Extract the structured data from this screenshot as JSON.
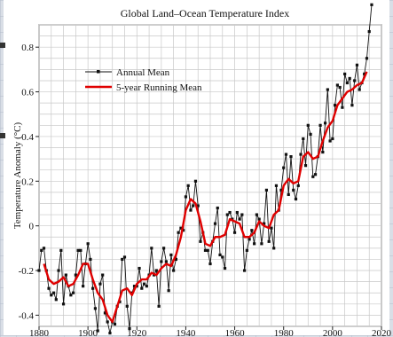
{
  "colors": {
    "annual": "#111111",
    "running": "#e00000",
    "grid": "#c8c8c8",
    "frame_bg": "#8fa3b8"
  },
  "chart_data": {
    "type": "line",
    "title": "Global Land–Ocean Temperature Index",
    "xlabel": "",
    "ylabel": "Temperature Anomaly (°C)",
    "xlim": [
      1880,
      2020
    ],
    "ylim": [
      -0.45,
      0.9
    ],
    "x_ticks": [
      1880,
      1900,
      1920,
      1940,
      1960,
      1980,
      2000,
      2020
    ],
    "y_ticks": [
      -0.4,
      -0.2,
      0,
      0.2,
      0.4,
      0.6,
      0.8
    ],
    "y_tick_labels": [
      "-0.4",
      "-0.2",
      "0",
      "0.2",
      "0.4",
      "0.6",
      "0.8"
    ],
    "grid": true,
    "legend_position": "upper-left",
    "series": [
      {
        "name": "Annual Mean",
        "color": "#111111",
        "marker": "square",
        "x": [
          1880,
          1881,
          1882,
          1883,
          1884,
          1885,
          1886,
          1887,
          1888,
          1889,
          1890,
          1891,
          1892,
          1893,
          1894,
          1895,
          1896,
          1897,
          1898,
          1899,
          1900,
          1901,
          1902,
          1903,
          1904,
          1905,
          1906,
          1907,
          1908,
          1909,
          1910,
          1911,
          1912,
          1913,
          1914,
          1915,
          1916,
          1917,
          1918,
          1919,
          1920,
          1921,
          1922,
          1923,
          1924,
          1925,
          1926,
          1927,
          1928,
          1929,
          1930,
          1931,
          1932,
          1933,
          1934,
          1935,
          1936,
          1937,
          1938,
          1939,
          1940,
          1941,
          1942,
          1943,
          1944,
          1945,
          1946,
          1947,
          1948,
          1949,
          1950,
          1951,
          1952,
          1953,
          1954,
          1955,
          1956,
          1957,
          1958,
          1959,
          1960,
          1961,
          1962,
          1963,
          1964,
          1965,
          1966,
          1967,
          1968,
          1969,
          1970,
          1971,
          1972,
          1973,
          1974,
          1975,
          1976,
          1977,
          1978,
          1979,
          1980,
          1981,
          1982,
          1983,
          1984,
          1985,
          1986,
          1987,
          1988,
          1989,
          1990,
          1991,
          1992,
          1993,
          1994,
          1995,
          1996,
          1997,
          1998,
          1999,
          2000,
          2001,
          2002,
          2003,
          2004,
          2005,
          2006,
          2007,
          2008,
          2009,
          2010,
          2011,
          2012,
          2013,
          2014,
          2015,
          2016
        ],
        "y": [
          -0.2,
          -0.11,
          -0.1,
          -0.2,
          -0.28,
          -0.31,
          -0.3,
          -0.33,
          -0.2,
          -0.11,
          -0.35,
          -0.22,
          -0.27,
          -0.31,
          -0.3,
          -0.22,
          -0.11,
          -0.11,
          -0.27,
          -0.17,
          -0.08,
          -0.15,
          -0.28,
          -0.37,
          -0.47,
          -0.26,
          -0.22,
          -0.39,
          -0.43,
          -0.48,
          -0.43,
          -0.44,
          -0.36,
          -0.34,
          -0.15,
          -0.14,
          -0.36,
          -0.46,
          -0.3,
          -0.27,
          -0.27,
          -0.19,
          -0.28,
          -0.26,
          -0.27,
          -0.22,
          -0.1,
          -0.22,
          -0.2,
          -0.36,
          -0.16,
          -0.1,
          -0.16,
          -0.29,
          -0.13,
          -0.2,
          -0.15,
          -0.03,
          -0.01,
          -0.02,
          0.13,
          0.18,
          0.07,
          0.09,
          0.2,
          0.09,
          -0.07,
          -0.03,
          -0.11,
          -0.11,
          -0.17,
          -0.07,
          0.01,
          0.08,
          -0.13,
          -0.14,
          -0.19,
          0.05,
          0.06,
          0.03,
          -0.03,
          0.06,
          0.03,
          0.05,
          -0.2,
          -0.11,
          -0.06,
          -0.02,
          -0.08,
          0.05,
          0.03,
          -0.08,
          0.01,
          0.16,
          -0.07,
          -0.01,
          -0.1,
          0.18,
          0.07,
          0.16,
          0.26,
          0.32,
          0.14,
          0.31,
          0.16,
          0.12,
          0.18,
          0.32,
          0.39,
          0.27,
          0.45,
          0.41,
          0.22,
          0.23,
          0.31,
          0.45,
          0.33,
          0.46,
          0.61,
          0.38,
          0.39,
          0.54,
          0.63,
          0.62,
          0.53,
          0.68,
          0.64,
          0.66,
          0.54,
          0.65,
          0.72,
          0.61,
          0.64,
          0.68,
          0.75,
          0.87,
          0.99
        ]
      },
      {
        "name": "5-year Running Mean",
        "color": "#e00000",
        "x": [
          1882,
          1884,
          1886,
          1888,
          1890,
          1892,
          1894,
          1896,
          1898,
          1900,
          1902,
          1904,
          1906,
          1908,
          1910,
          1912,
          1914,
          1916,
          1918,
          1920,
          1922,
          1924,
          1926,
          1928,
          1930,
          1932,
          1934,
          1936,
          1938,
          1940,
          1942,
          1944,
          1946,
          1948,
          1950,
          1952,
          1954,
          1956,
          1958,
          1960,
          1962,
          1964,
          1966,
          1968,
          1970,
          1972,
          1974,
          1976,
          1978,
          1980,
          1982,
          1984,
          1986,
          1988,
          1990,
          1992,
          1994,
          1996,
          1998,
          2000,
          2002,
          2004,
          2006,
          2008,
          2010,
          2012,
          2014
        ],
        "y": [
          -0.17,
          -0.24,
          -0.26,
          -0.25,
          -0.23,
          -0.27,
          -0.26,
          -0.22,
          -0.17,
          -0.17,
          -0.24,
          -0.3,
          -0.33,
          -0.4,
          -0.43,
          -0.36,
          -0.29,
          -0.28,
          -0.31,
          -0.26,
          -0.24,
          -0.24,
          -0.21,
          -0.22,
          -0.19,
          -0.17,
          -0.18,
          -0.13,
          -0.05,
          0.07,
          0.12,
          0.1,
          0.02,
          -0.08,
          -0.09,
          -0.05,
          -0.05,
          -0.04,
          0.03,
          0.02,
          0.01,
          -0.05,
          -0.05,
          -0.03,
          0.02,
          0.0,
          -0.01,
          0.05,
          0.07,
          0.18,
          0.21,
          0.19,
          0.2,
          0.31,
          0.33,
          0.3,
          0.31,
          0.38,
          0.44,
          0.47,
          0.54,
          0.57,
          0.6,
          0.61,
          0.63,
          0.64,
          0.69
        ]
      }
    ]
  }
}
